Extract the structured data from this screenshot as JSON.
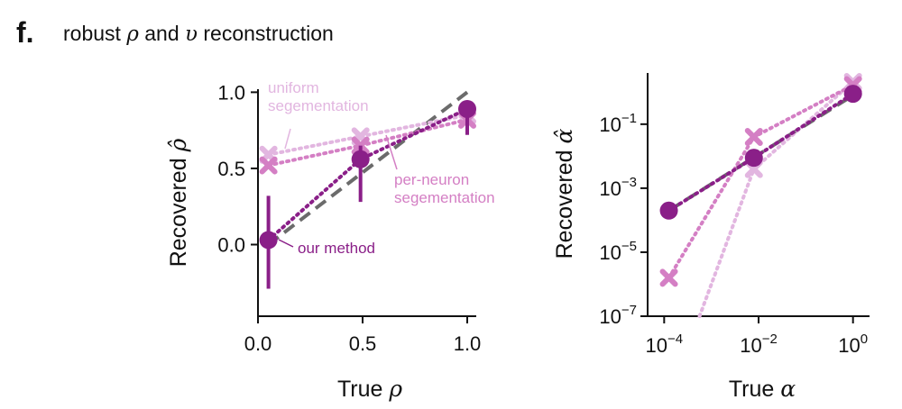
{
  "panel": {
    "letter": "f.",
    "title_pre": "robust ",
    "sym_rho": "ρ",
    "title_mid": " and ",
    "sym_upsilon": "υ",
    "title_post": " reconstruction"
  },
  "colors": {
    "ours": "#8a1f88",
    "per_neuron": "#d47fc4",
    "uniform": "#e2b6e0",
    "identity": "#6b6b6b",
    "axis": "#111111"
  },
  "chart_data": [
    {
      "type": "scatter",
      "xlabel_text": "True",
      "xlabel_sym": "ρ",
      "ylabel_text": "Recovered",
      "ylabel_sym": "ρ̂",
      "xlim": [
        0,
        1.0
      ],
      "ylim": [
        -0.47,
        1.02
      ],
      "xticks": [
        0.0,
        0.5,
        1.0
      ],
      "xticklabels": [
        "0.0",
        "0.5",
        "1.0"
      ],
      "yticks": [
        0.0,
        0.5,
        1.0
      ],
      "yticklabels": [
        "0.0",
        "0.5",
        "1.0"
      ],
      "identity": [
        [
          0.05,
          0.0
        ],
        [
          1.0,
          1.0
        ]
      ],
      "series": [
        {
          "name": "uniform segementation",
          "color_key": "uniform",
          "marker": "x",
          "points": [
            [
              0.05,
              0.59
            ],
            [
              0.49,
              0.71
            ],
            [
              1.0,
              0.85
            ]
          ]
        },
        {
          "name": "per-neuron segementation",
          "color_key": "per_neuron",
          "marker": "x",
          "points": [
            [
              0.05,
              0.52
            ],
            [
              0.49,
              0.65
            ],
            [
              1.0,
              0.82
            ]
          ]
        },
        {
          "name": "our method",
          "color_key": "ours",
          "marker": "o",
          "points": [
            [
              0.05,
              0.03
            ],
            [
              0.49,
              0.56
            ],
            [
              1.0,
              0.89
            ]
          ],
          "errors": [
            [
              -0.29,
              0.32
            ],
            [
              0.28,
              0.65
            ],
            [
              0.72,
              0.9
            ]
          ]
        }
      ],
      "annotations": {
        "uniform": [
          "uniform",
          "segementation"
        ],
        "per_neuron": [
          "per-neuron",
          "segementation"
        ],
        "ours": [
          "our method"
        ]
      }
    },
    {
      "type": "scatter",
      "log_x": true,
      "log_y": true,
      "xlabel_text": "True",
      "xlabel_sym": "α",
      "ylabel_text": "Recovered",
      "ylabel_sym": "α̂",
      "xlim_log10": [
        -4.35,
        0.35
      ],
      "ylim_log10": [
        -7,
        0.6
      ],
      "xticks_log10": [
        -4,
        -2,
        0
      ],
      "yticks_log10": [
        -1,
        -3,
        -5,
        -7
      ],
      "identity_log10": [
        [
          -3.9,
          -3.7
        ],
        [
          0,
          -0.1
        ]
      ],
      "series": [
        {
          "name": "uniform segementation",
          "color_key": "uniform",
          "marker": "x",
          "points_log10": [
            [
              -2.1,
              -2.4
            ],
            [
              0.0,
              0.32
            ]
          ],
          "tail_log10": [
            -3.25,
            -7.0
          ]
        },
        {
          "name": "per-neuron segementation",
          "color_key": "per_neuron",
          "marker": "x",
          "points_log10": [
            [
              -3.9,
              -5.8
            ],
            [
              -2.1,
              -1.4
            ],
            [
              0.0,
              0.22
            ]
          ]
        },
        {
          "name": "our method",
          "color_key": "ours",
          "marker": "o",
          "points_log10": [
            [
              -3.9,
              -3.7
            ],
            [
              -2.1,
              -2.05
            ],
            [
              0.0,
              -0.05
            ]
          ]
        }
      ]
    }
  ]
}
